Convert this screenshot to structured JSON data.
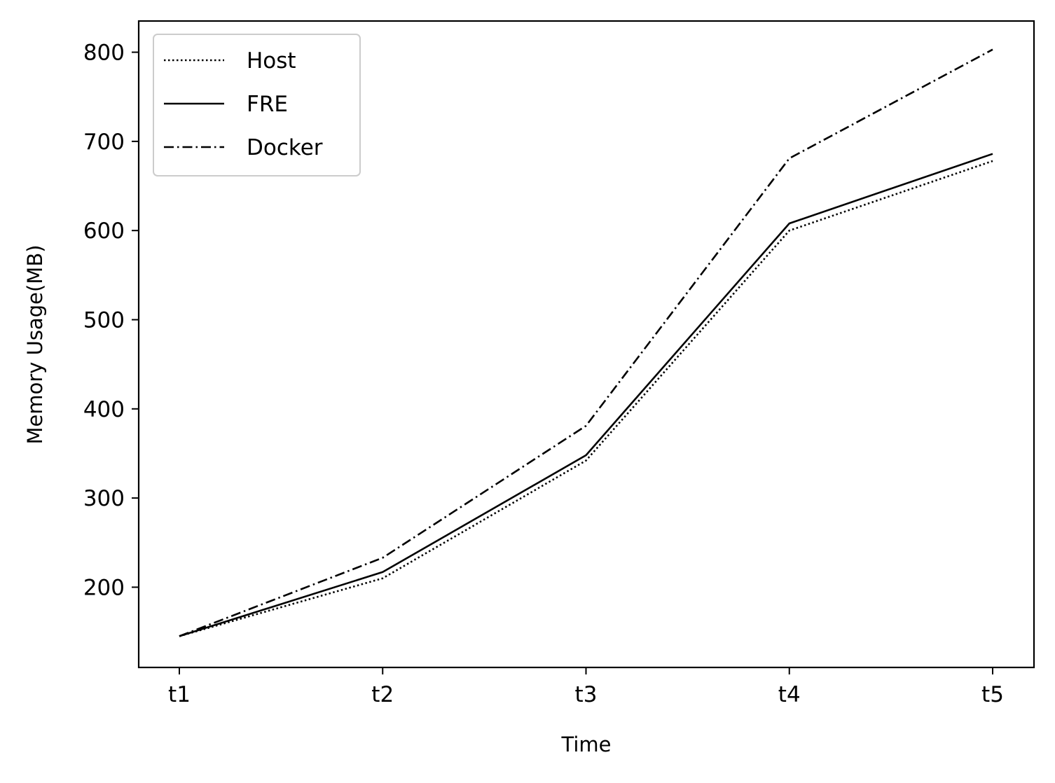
{
  "chart_data": {
    "type": "line",
    "title": "",
    "xlabel": "Time",
    "ylabel": "Memory Usage(MB)",
    "categories": [
      "t1",
      "t2",
      "t3",
      "t4",
      "t5"
    ],
    "ylim": [
      110,
      835
    ],
    "yticks": [
      200,
      300,
      400,
      500,
      600,
      700,
      800
    ],
    "grid": false,
    "legend_position": "top-left",
    "series": [
      {
        "name": "Host",
        "style": "dotted",
        "color": "#000000",
        "values": [
          145,
          210,
          342,
          600,
          678
        ]
      },
      {
        "name": "FRE",
        "style": "solid",
        "color": "#000000",
        "values": [
          145,
          217,
          348,
          608,
          686
        ]
      },
      {
        "name": "Docker",
        "style": "dashdot",
        "color": "#000000",
        "values": [
          145,
          233,
          381,
          681,
          803
        ]
      }
    ]
  }
}
